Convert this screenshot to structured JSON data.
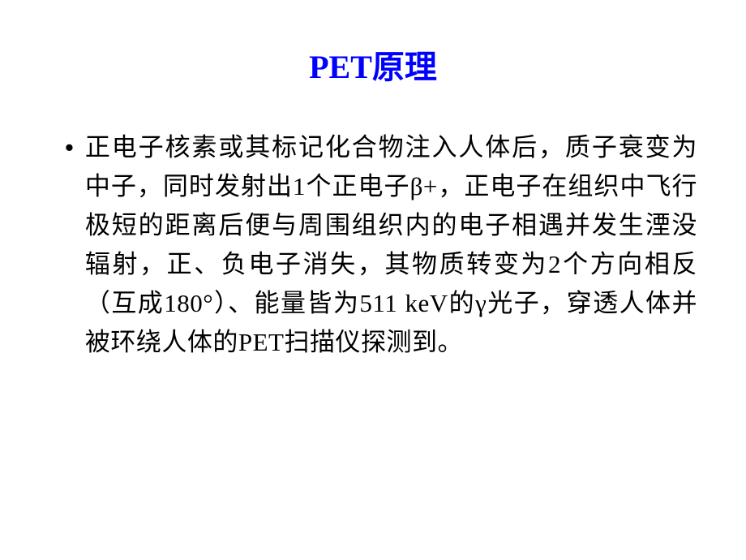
{
  "slide": {
    "title": "PET原理",
    "title_color": "#0000ff",
    "title_fontsize": 40,
    "bullet_glyph": "•",
    "body_fontsize": 31,
    "body_color": "#000000",
    "body_text": "正电子核素或其标记化合物注入人体后，质子衰变为中子，同时发射出1个正电子β+，正电子在组织中飞行极短的距离后便与周围组织内的电子相遇并发生湮没辐射，正、负电子消失，其物质转变为2个方向相反（互成180°）、能量皆为511 keV的γ光子，穿透人体并被环绕人体的PET扫描仪探测到。"
  }
}
